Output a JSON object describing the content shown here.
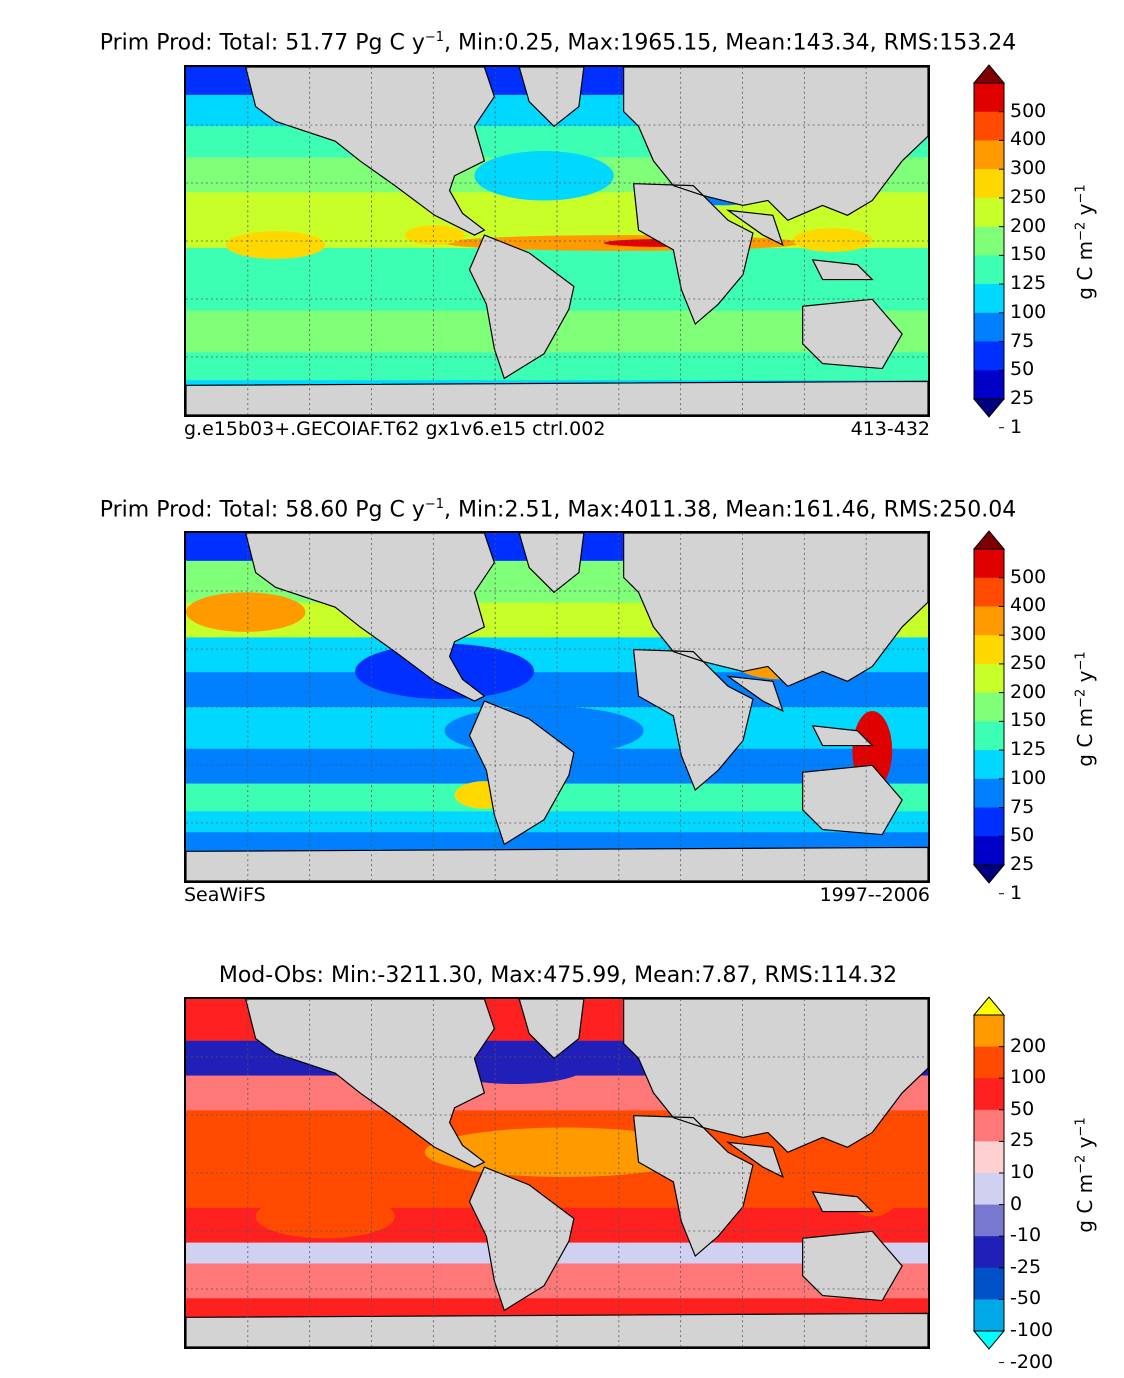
{
  "panels": [
    {
      "title_prefix": "Prim Prod: Total: 51.77 Pg C y",
      "title_exp": "−1",
      "title_suffix": ", Min:0.25, Max:1965.15, Mean:143.34, RMS:153.24",
      "footer_left": "g.e15b03+.GECOIAF.T62 gx1v6.e15 ctrl.002",
      "footer_right": "413-432"
    },
    {
      "title_prefix": "Prim Prod: Total: 58.60 Pg C y",
      "title_exp": "−1",
      "title_suffix": ", Min:2.51, Max:4011.38, Mean:161.46, RMS:250.04",
      "footer_left": "SeaWiFS",
      "footer_right": "1997--2006"
    },
    {
      "title_prefix": "Mod-Obs: Min:-3211.30, Max:475.99, Mean:7.87, RMS:114.32",
      "title_exp": "",
      "title_suffix": "",
      "footer_left": "",
      "footer_right": ""
    }
  ],
  "colorbars": [
    {
      "labels": [
        "500",
        "400",
        "300",
        "250",
        "200",
        "150",
        "125",
        "100",
        "75",
        "50",
        "25",
        "1"
      ],
      "colors_top_to_bottom": [
        "#7f0000",
        "#e00000",
        "#ff4a00",
        "#ff9a00",
        "#ffd800",
        "#c8ff28",
        "#80ff78",
        "#3cffb4",
        "#00d8ff",
        "#0080ff",
        "#0030ff",
        "#0000c8",
        "#00007f"
      ],
      "unit": "g C m−2 y−1"
    },
    {
      "labels": [
        "500",
        "400",
        "300",
        "250",
        "200",
        "150",
        "125",
        "100",
        "75",
        "50",
        "25",
        "1"
      ],
      "colors_top_to_bottom": [
        "#7f0000",
        "#e00000",
        "#ff4a00",
        "#ff9a00",
        "#ffd800",
        "#c8ff28",
        "#80ff78",
        "#3cffb4",
        "#00d8ff",
        "#0080ff",
        "#0030ff",
        "#0000c8",
        "#00007f"
      ],
      "unit": "g C m−2 y−1"
    },
    {
      "labels": [
        "200",
        "100",
        "50",
        "25",
        "10",
        "0",
        "-10",
        "-25",
        "-50",
        "-100",
        "-200"
      ],
      "colors_top_to_bottom": [
        "#ffff00",
        "#ff9a00",
        "#ff4a00",
        "#ff2020",
        "#ff7878",
        "#ffd0d0",
        "#d0d0f0",
        "#7878d0",
        "#2020b8",
        "#0050c8",
        "#00a8e8",
        "#00ffff"
      ],
      "unit": "g C m−2 y−1"
    }
  ],
  "chart_data": [
    {
      "type": "heatmap",
      "title": "Prim Prod: Total: 51.77 Pg C y−1, Min:0.25, Max:1965.15, Mean:143.34, RMS:153.24",
      "subtitle_left": "g.e15b03+.GECOIAF.T62 gx1v6.e15 ctrl.002",
      "subtitle_right": "413-432",
      "stats": {
        "total_PgC_per_y": 51.77,
        "min": 0.25,
        "max": 1965.15,
        "mean": 143.34,
        "rms": 153.24
      },
      "colorbar_levels": [
        1,
        25,
        50,
        75,
        100,
        125,
        150,
        200,
        250,
        300,
        400,
        500
      ],
      "colorbar_extend": "both",
      "colorbar_label": "g C m−2 y−1",
      "grid": true,
      "land_color": "#d3d3d3"
    },
    {
      "type": "heatmap",
      "title": "Prim Prod: Total: 58.60 Pg C y−1, Min:2.51, Max:4011.38, Mean:161.46, RMS:250.04",
      "subtitle_left": "SeaWiFS",
      "subtitle_right": "1997--2006",
      "stats": {
        "total_PgC_per_y": 58.6,
        "min": 2.51,
        "max": 4011.38,
        "mean": 161.46,
        "rms": 250.04
      },
      "colorbar_levels": [
        1,
        25,
        50,
        75,
        100,
        125,
        150,
        200,
        250,
        300,
        400,
        500
      ],
      "colorbar_extend": "both",
      "colorbar_label": "g C m−2 y−1",
      "grid": true,
      "land_color": "#d3d3d3"
    },
    {
      "type": "heatmap",
      "title": "Mod-Obs: Min:-3211.30, Max:475.99, Mean:7.87, RMS:114.32",
      "stats": {
        "min": -3211.3,
        "max": 475.99,
        "mean": 7.87,
        "rms": 114.32
      },
      "colorbar_levels": [
        -200,
        -100,
        -50,
        -25,
        -10,
        0,
        10,
        25,
        50,
        100,
        200
      ],
      "colorbar_extend": "both",
      "colorbar_label": "g C m−2 y−1",
      "grid": true,
      "land_color": "#d3d3d3"
    }
  ]
}
